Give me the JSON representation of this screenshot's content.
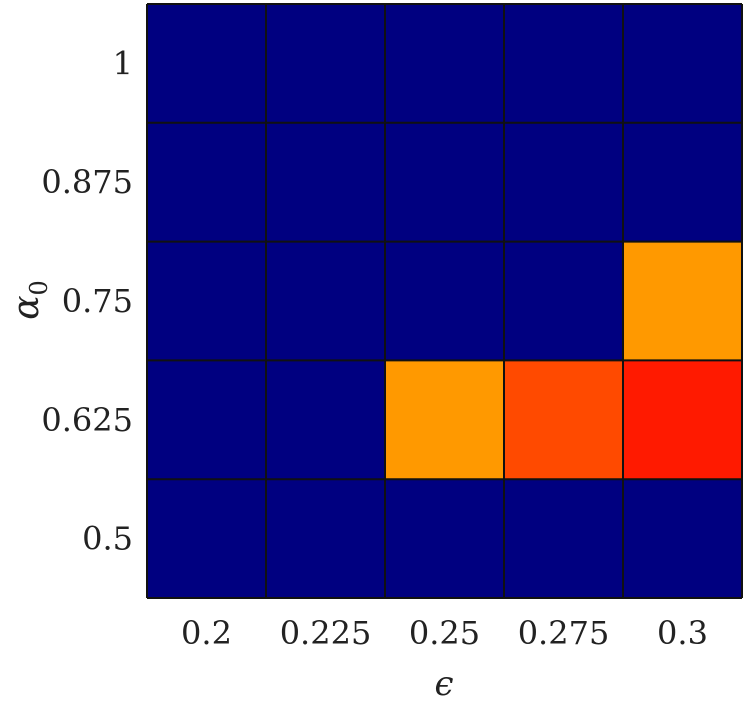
{
  "chart_data": {
    "type": "heatmap",
    "xlabel": "ϵ",
    "ylabel": "α",
    "ylabel_subscript": "0",
    "x_categories": [
      "0.2",
      "0.225",
      "0.25",
      "0.275",
      "0.3"
    ],
    "y_categories": [
      "1",
      "0.875",
      "0.75",
      "0.625",
      "0.5"
    ],
    "values": [
      [
        0,
        0,
        0,
        0,
        0
      ],
      [
        0,
        0,
        0,
        0,
        0
      ],
      [
        0,
        0,
        0,
        0,
        0.55
      ],
      [
        0,
        0,
        0.55,
        0.75,
        0.9
      ],
      [
        0,
        0,
        0,
        0,
        0
      ]
    ],
    "colors": {
      "low": "#000080",
      "cell_orange": "#ff9900",
      "cell_dark_orange": "#ff4a00",
      "cell_red": "#ff1a00",
      "grid": "#111111"
    },
    "grid": true,
    "legend": "none"
  }
}
